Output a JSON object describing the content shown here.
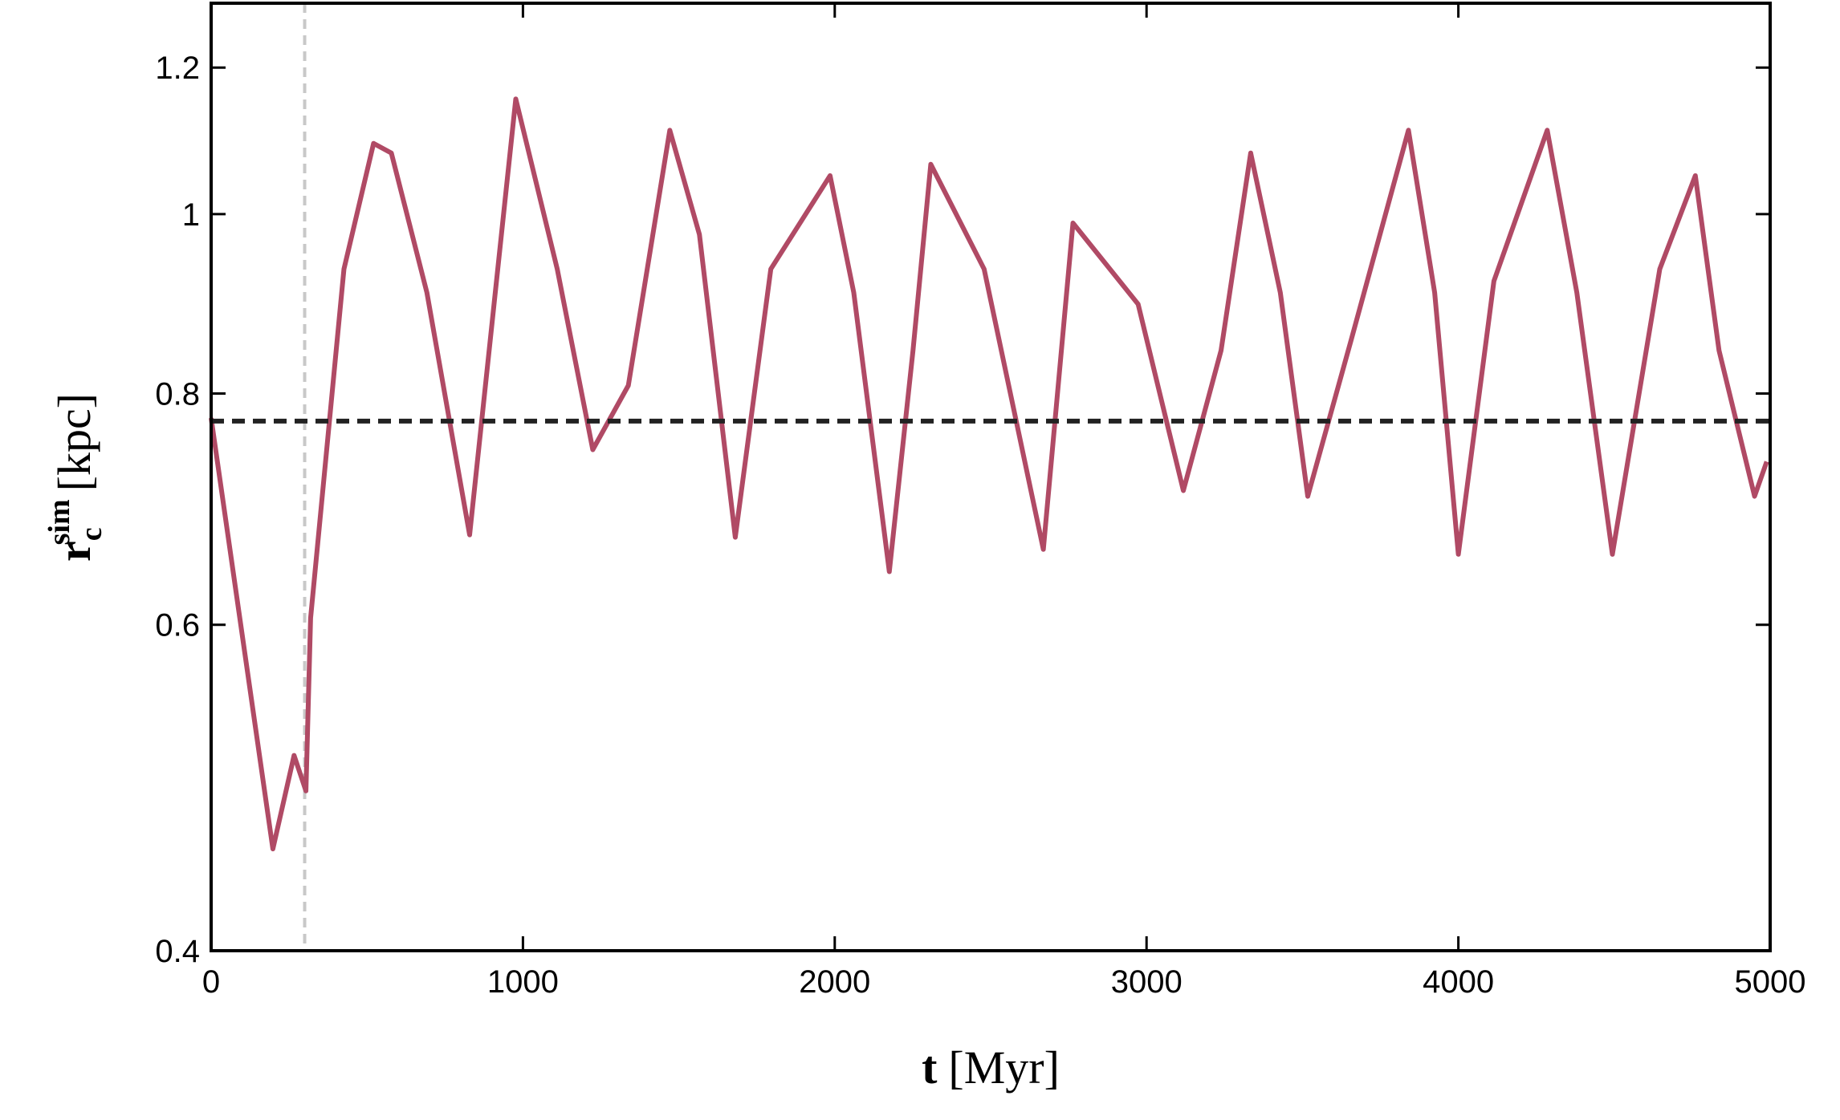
{
  "chart_data": {
    "type": "line",
    "xlabel": {
      "symbol": "t",
      "unit": "[Myr]"
    },
    "ylabel": {
      "symbol": "r",
      "sub": "c",
      "sup": "sim",
      "unit": "[kpc]"
    },
    "x": [
      0,
      198,
      266,
      304,
      319,
      426,
      521,
      578,
      692,
      829,
      977,
      1110,
      1224,
      1338,
      1471,
      1566,
      1681,
      1795,
      1985,
      2061,
      2175,
      2251,
      2308,
      2479,
      2669,
      2764,
      2973,
      3118,
      3239,
      3334,
      3429,
      3517,
      3657,
      3840,
      3924,
      4000,
      4114,
      4285,
      4380,
      4494,
      4646,
      4760,
      4836,
      4950,
      4989
    ],
    "series": [
      {
        "name": "r_c^sim",
        "color": "#b04a65",
        "values": [
          0.776,
          0.454,
          0.51,
          0.488,
          0.605,
          0.934,
          1.092,
          1.079,
          0.907,
          0.671,
          1.154,
          0.934,
          0.746,
          0.808,
          1.11,
          0.975,
          0.669,
          0.934,
          1.049,
          0.907,
          0.641,
          0.844,
          1.064,
          0.934,
          0.659,
          0.989,
          0.894,
          0.709,
          0.844,
          1.079,
          0.907,
          0.704,
          0.856,
          1.11,
          0.907,
          0.655,
          0.92,
          1.11,
          0.907,
          0.655,
          0.934,
          1.049,
          0.844,
          0.704,
          0.735
        ]
      }
    ],
    "hline": {
      "y": 0.773,
      "color": "#222222"
    },
    "vline": {
      "x": 300,
      "color": "#c8c8c8"
    },
    "xlim": [
      0,
      5000
    ],
    "xticks": [
      0,
      1000,
      2000,
      3000,
      4000,
      5000
    ],
    "ylim": [
      0.4,
      1.3
    ],
    "yticks": [
      0.4,
      0.6,
      0.8,
      1.0,
      1.2
    ],
    "yscale": "log",
    "grid": false
  }
}
